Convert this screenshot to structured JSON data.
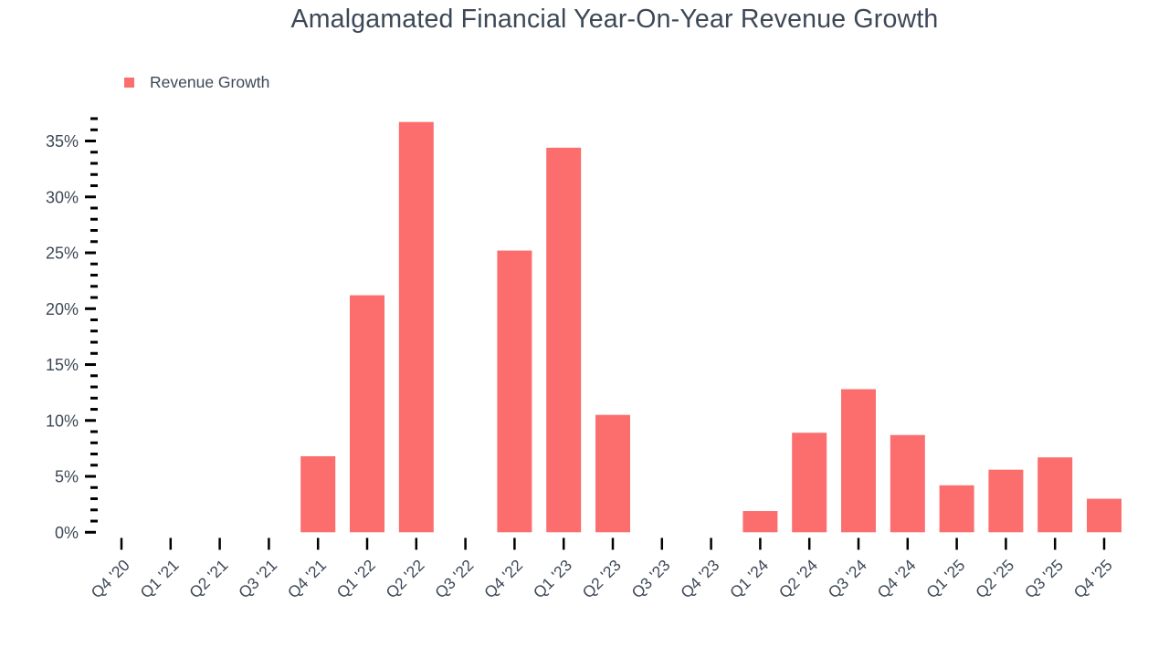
{
  "chart": {
    "title": "Amalgamated Financial Year-On-Year Revenue Growth",
    "legend": [
      {
        "label": "Revenue Growth",
        "color": "#FC6E6E"
      }
    ]
  },
  "chart_data": {
    "type": "bar",
    "title": "Amalgamated Financial Year-On-Year Revenue Growth",
    "categories": [
      "Q4 '20",
      "Q1 '21",
      "Q2 '21",
      "Q3 '21",
      "Q4 '21",
      "Q1 '22",
      "Q2 '22",
      "Q3 '22",
      "Q4 '22",
      "Q1 '23",
      "Q2 '23",
      "Q3 '23",
      "Q4 '23",
      "Q1 '24",
      "Q2 '24",
      "Q3 '24",
      "Q4 '24",
      "Q1 '25",
      "Q2 '25",
      "Q3 '25",
      "Q4 '25"
    ],
    "series": [
      {
        "name": "Revenue Growth",
        "color": "#FC6E6E",
        "values": [
          null,
          null,
          null,
          null,
          6.8,
          21.2,
          36.7,
          null,
          25.2,
          34.4,
          10.5,
          null,
          null,
          1.9,
          8.9,
          12.8,
          8.7,
          4.2,
          5.6,
          6.7,
          3.0
        ]
      }
    ],
    "xlabel": "",
    "ylabel": "",
    "y_axis": {
      "unit": "%",
      "min": 0,
      "max": 37,
      "major_tick_step": 5,
      "minor_tick_step": 1,
      "major_tick_labels": [
        "0%",
        "5%",
        "10%",
        "15%",
        "20%",
        "25%",
        "30%",
        "35%"
      ]
    },
    "legend_position": "top-left",
    "grid": false
  },
  "colors": {
    "bar": "#FC6E6E",
    "text": "#3d4857",
    "tick": "#000000",
    "background": "#ffffff"
  }
}
